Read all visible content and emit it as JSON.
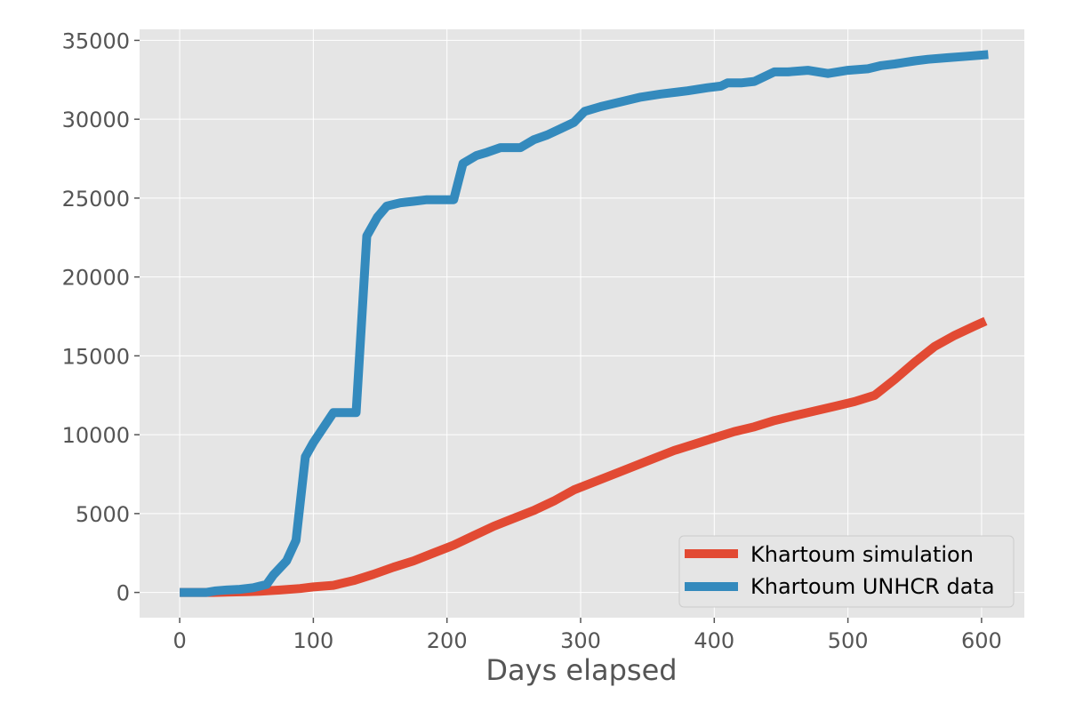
{
  "chart_data": {
    "type": "line",
    "title": "",
    "xlabel": "Days elapsed",
    "ylabel": "",
    "xlim": [
      -30,
      632
    ],
    "ylim": [
      -1600,
      35700
    ],
    "xticks": [
      0,
      100,
      200,
      300,
      400,
      500,
      600
    ],
    "yticks": [
      0,
      5000,
      10000,
      15000,
      20000,
      25000,
      30000,
      35000
    ],
    "x_tick_labels": [
      "0",
      "100",
      "200",
      "300",
      "400",
      "500",
      "600"
    ],
    "y_tick_labels": [
      "0",
      "5000",
      "10000",
      "15000",
      "20000",
      "25000",
      "30000",
      "35000"
    ],
    "grid": true,
    "legend_position": "lower-right",
    "background": "#e5e5e5",
    "series": [
      {
        "name": "Khartoum simulation",
        "color": "#e24a33",
        "x": [
          0,
          25,
          50,
          60,
          75,
          90,
          100,
          115,
          130,
          145,
          160,
          175,
          190,
          205,
          220,
          235,
          250,
          265,
          280,
          295,
          310,
          325,
          340,
          355,
          370,
          385,
          400,
          415,
          430,
          445,
          460,
          475,
          490,
          505,
          520,
          535,
          550,
          565,
          580,
          595,
          603
        ],
        "y": [
          0,
          0,
          50,
          80,
          150,
          250,
          350,
          450,
          750,
          1150,
          1600,
          2000,
          2500,
          3000,
          3600,
          4200,
          4700,
          5200,
          5800,
          6500,
          7000,
          7500,
          8000,
          8500,
          9000,
          9400,
          9800,
          10200,
          10500,
          10900,
          11200,
          11500,
          11800,
          12100,
          12500,
          13500,
          14600,
          15600,
          16300,
          16900,
          17200
        ]
      },
      {
        "name": "Khartoum UNHCR data",
        "color": "#348abd",
        "x": [
          0,
          10,
          20,
          27,
          35,
          45,
          55,
          60,
          65,
          70,
          80,
          87,
          94,
          100,
          115,
          132,
          140,
          148,
          155,
          165,
          175,
          185,
          195,
          205,
          212,
          222,
          230,
          240,
          255,
          265,
          275,
          285,
          295,
          303,
          315,
          330,
          345,
          360,
          380,
          395,
          405,
          410,
          420,
          430,
          445,
          455,
          470,
          485,
          500,
          515,
          525,
          535,
          550,
          560,
          575,
          590,
          605
        ],
        "y": [
          0,
          0,
          0,
          100,
          150,
          200,
          300,
          400,
          500,
          1100,
          2000,
          3300,
          8600,
          9500,
          11400,
          11400,
          22600,
          23800,
          24500,
          24700,
          24800,
          24900,
          24900,
          24900,
          27200,
          27700,
          27900,
          28200,
          28200,
          28700,
          29000,
          29400,
          29800,
          30500,
          30800,
          31100,
          31400,
          31600,
          31800,
          32000,
          32100,
          32300,
          32300,
          32400,
          33000,
          33000,
          33100,
          32900,
          33100,
          33200,
          33400,
          33500,
          33700,
          33800,
          33900,
          34000,
          34100
        ]
      }
    ]
  }
}
